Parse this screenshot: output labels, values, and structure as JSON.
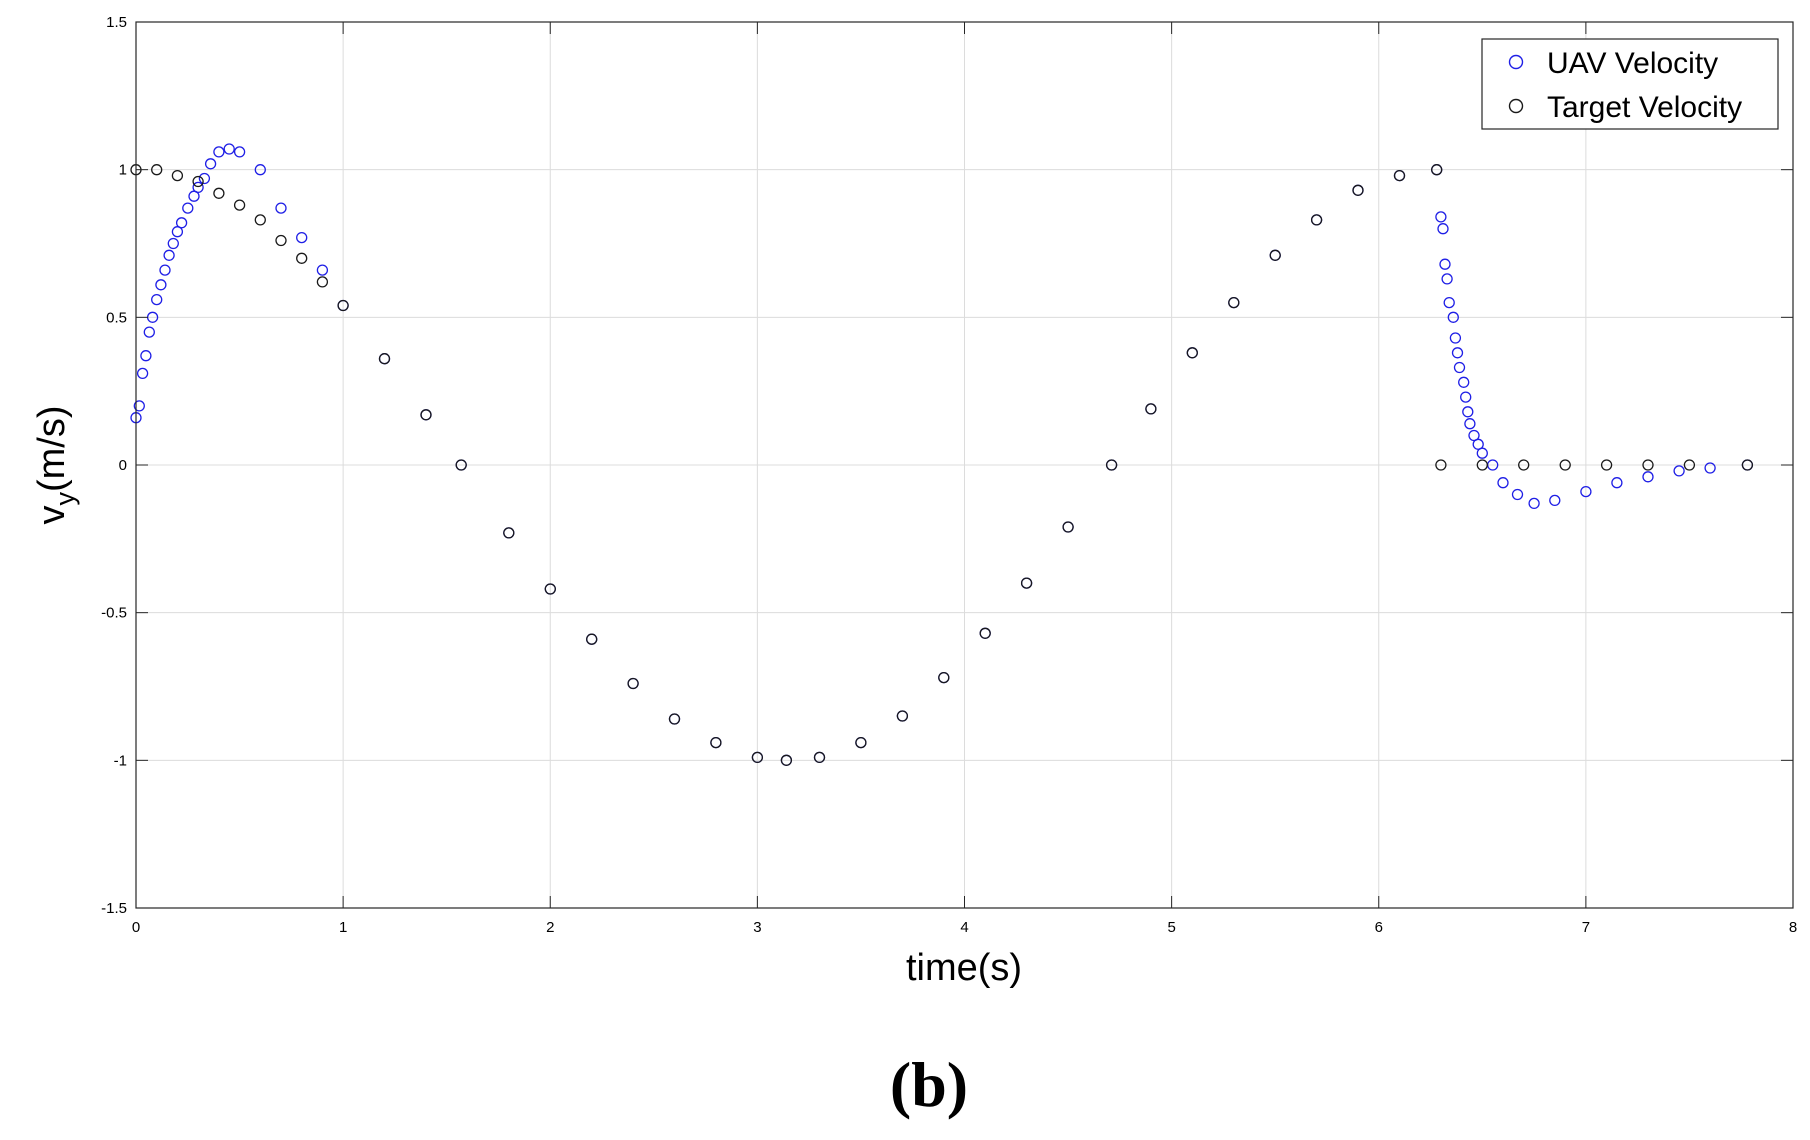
{
  "chart_data": {
    "type": "scatter",
    "title": "",
    "xlabel": "time(s)",
    "ylabel_main": "v",
    "ylabel_sub": "y",
    "ylabel_rest": "(m/s)",
    "xlim": [
      0,
      8
    ],
    "ylim": [
      -1.5,
      1.5
    ],
    "xticks": [
      0,
      1,
      2,
      3,
      4,
      5,
      6,
      7,
      8
    ],
    "yticks": [
      -1.5,
      -1,
      -0.5,
      0,
      0.5,
      1,
      1.5
    ],
    "xtick_labels": [
      "0",
      "1",
      "2",
      "3",
      "4",
      "5",
      "6",
      "7",
      "8"
    ],
    "ytick_labels": [
      "-1.5",
      "-1",
      "-0.5",
      "0",
      "0.5",
      "1",
      "1.5"
    ],
    "grid": true,
    "legend_position": "top-right",
    "panel_label": "(b)",
    "series": [
      {
        "name": "UAV Velocity",
        "color": "#1f1fe6",
        "x": [
          0.0,
          0.016,
          0.032,
          0.048,
          0.064,
          0.08,
          0.1,
          0.12,
          0.14,
          0.16,
          0.18,
          0.2,
          0.22,
          0.25,
          0.28,
          0.3,
          0.33,
          0.36,
          0.4,
          0.45,
          0.5,
          0.6,
          0.7,
          0.8,
          0.9,
          1.0,
          1.2,
          1.4,
          1.57,
          1.8,
          2.0,
          2.2,
          2.4,
          2.6,
          2.8,
          3.0,
          3.14,
          3.3,
          3.5,
          3.7,
          3.9,
          4.1,
          4.3,
          4.5,
          4.71,
          4.9,
          5.1,
          5.3,
          5.5,
          5.7,
          5.9,
          6.1,
          6.28,
          6.3,
          6.31,
          6.32,
          6.33,
          6.34,
          6.36,
          6.37,
          6.38,
          6.39,
          6.41,
          6.42,
          6.43,
          6.44,
          6.46,
          6.48,
          6.5,
          6.55,
          6.6,
          6.67,
          6.75,
          6.85,
          7.0,
          7.15,
          7.3,
          7.45,
          7.6,
          7.78
        ],
        "y": [
          0.16,
          0.2,
          0.31,
          0.37,
          0.45,
          0.5,
          0.56,
          0.61,
          0.66,
          0.71,
          0.75,
          0.79,
          0.82,
          0.87,
          0.91,
          0.94,
          0.97,
          1.02,
          1.06,
          1.07,
          1.06,
          1.0,
          0.87,
          0.77,
          0.66,
          0.54,
          0.36,
          0.17,
          0.0,
          -0.23,
          -0.42,
          -0.59,
          -0.74,
          -0.86,
          -0.94,
          -0.99,
          -1.0,
          -0.99,
          -0.94,
          -0.85,
          -0.72,
          -0.57,
          -0.4,
          -0.21,
          0.0,
          0.19,
          0.38,
          0.55,
          0.71,
          0.83,
          0.93,
          0.98,
          1.0,
          0.84,
          0.8,
          0.68,
          0.63,
          0.55,
          0.5,
          0.43,
          0.38,
          0.33,
          0.28,
          0.23,
          0.18,
          0.14,
          0.1,
          0.07,
          0.04,
          0.0,
          -0.06,
          -0.1,
          -0.13,
          -0.12,
          -0.09,
          -0.06,
          -0.04,
          -0.02,
          -0.01,
          0.0
        ]
      },
      {
        "name": "Target Velocity",
        "color": "#1a1a1a",
        "x": [
          0.0,
          0.1,
          0.2,
          0.3,
          0.4,
          0.5,
          0.6,
          0.7,
          0.8,
          0.9,
          1.0,
          1.2,
          1.4,
          1.57,
          1.8,
          2.0,
          2.2,
          2.4,
          2.6,
          2.8,
          3.0,
          3.14,
          3.3,
          3.5,
          3.7,
          3.9,
          4.1,
          4.3,
          4.5,
          4.71,
          4.9,
          5.1,
          5.3,
          5.5,
          5.7,
          5.9,
          6.1,
          6.28,
          6.3,
          6.5,
          6.7,
          6.9,
          7.1,
          7.3,
          7.5,
          7.78
        ],
        "y": [
          1.0,
          1.0,
          0.98,
          0.96,
          0.92,
          0.88,
          0.83,
          0.76,
          0.7,
          0.62,
          0.54,
          0.36,
          0.17,
          0.0,
          -0.23,
          -0.42,
          -0.59,
          -0.74,
          -0.86,
          -0.94,
          -0.99,
          -1.0,
          -0.99,
          -0.94,
          -0.85,
          -0.72,
          -0.57,
          -0.4,
          -0.21,
          0.0,
          0.19,
          0.38,
          0.55,
          0.71,
          0.83,
          0.93,
          0.98,
          1.0,
          0.0,
          0.0,
          0.0,
          0.0,
          0.0,
          0.0,
          0.0,
          0.0
        ]
      }
    ]
  }
}
